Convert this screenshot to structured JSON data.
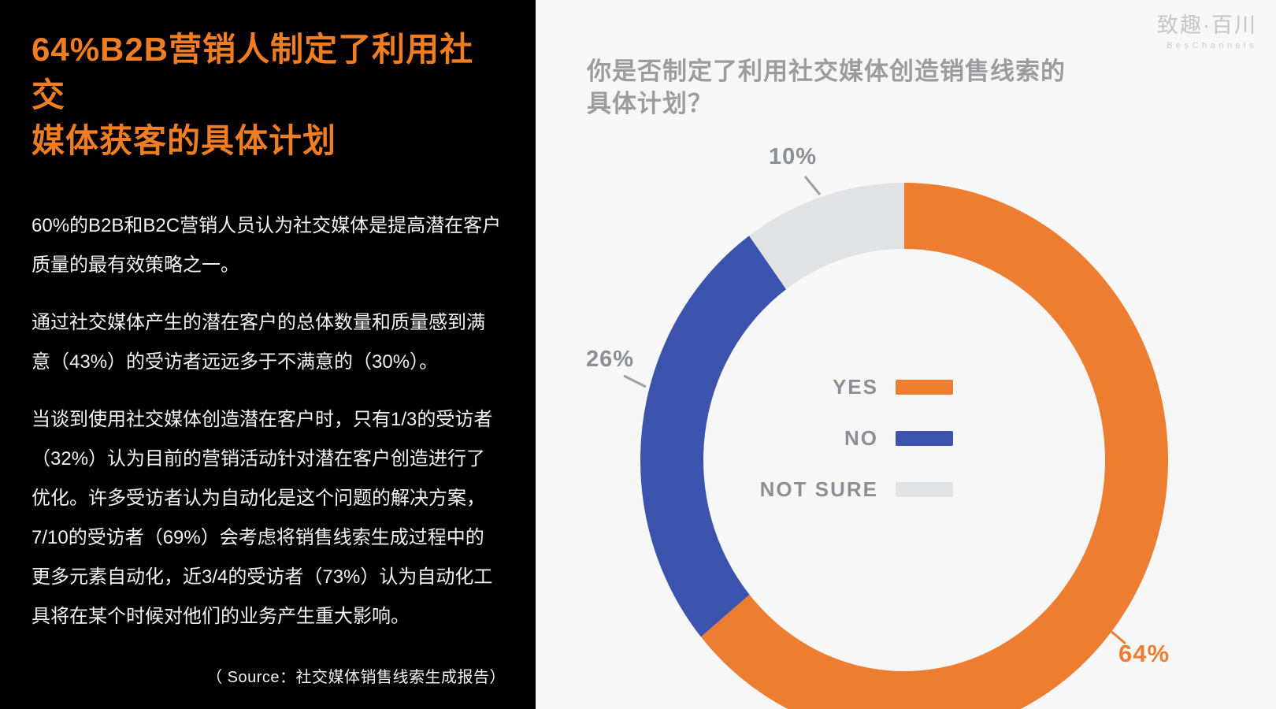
{
  "left_panel": {
    "title": "64%B2B营销人制定了利用社交\n媒体获客的具体计划",
    "paragraphs": [
      "60%的B2B和B2C营销人员认为社交媒体是提高潜在客户质量的最有效策略之一。",
      "通过社交媒体产生的潜在客户的总体数量和质量感到满意（43%）的受访者远远多于不满意的（30%）。",
      "当谈到使用社交媒体创造潜在客户时，只有1/3的受访者（32%）认为目前的营销活动针对潜在客户创造进行了优化。许多受访者认为自动化是这个问题的解决方案，7/10的受访者（69%）会考虑将销售线索生成过程中的更多元素自动化，近3/4的受访者（73%）认为自动化工具将在某个时候对他们的业务产生重大影响。"
    ],
    "source": "（ Source：社交媒体销售线索生成报告）"
  },
  "right_panel": {
    "question": "你是否制定了利用社交媒体创造销售线索的\n具体计划？",
    "brand": {
      "name": "致趣·百川",
      "subtitle": "BesChannels"
    }
  },
  "chart_data": {
    "type": "pie",
    "donut": true,
    "title": "你是否制定了利用社交媒体创造销售线索的具体计划？",
    "categories": [
      "YES",
      "NO",
      "NOT SURE"
    ],
    "values": [
      64,
      26,
      10
    ],
    "display_labels": [
      "64%",
      "26%",
      "10%"
    ],
    "colors": {
      "YES": "#ED7D31",
      "NO": "#3B53AD",
      "NOT SURE": "#E2E3E5"
    },
    "start_angle_deg": 0,
    "direction": "clockwise",
    "legend_position": "center"
  }
}
